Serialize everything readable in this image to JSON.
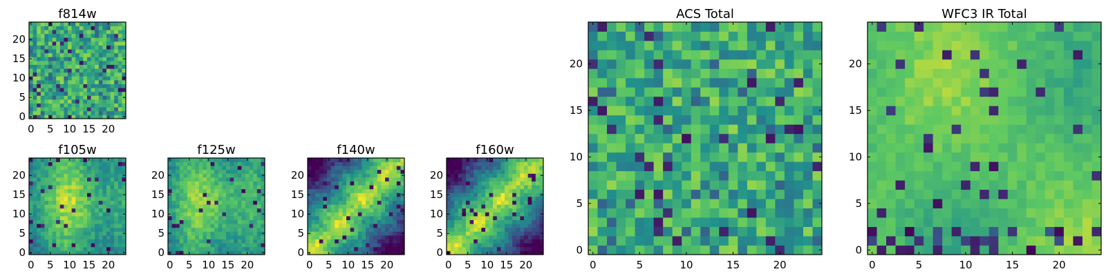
{
  "chart_data": [
    {
      "id": "f814w",
      "type": "heatmap",
      "title": "f814w",
      "texture": "noise",
      "seed": 814,
      "xlim": [
        0,
        24
      ],
      "ylim": [
        0,
        24
      ],
      "xticks": [
        0,
        5,
        10,
        15,
        20
      ],
      "yticks": [
        0,
        5,
        10,
        15,
        20
      ]
    },
    {
      "id": "f105w",
      "type": "heatmap",
      "title": "f105w",
      "texture": "blob",
      "seed": 105,
      "xlim": [
        0,
        24
      ],
      "ylim": [
        0,
        24
      ],
      "xticks": [
        0,
        5,
        10,
        15,
        20
      ],
      "yticks": [
        0,
        5,
        10,
        15,
        20
      ]
    },
    {
      "id": "f125w",
      "type": "heatmap",
      "title": "f125w",
      "texture": "blob",
      "seed": 125,
      "xlim": [
        0,
        24
      ],
      "ylim": [
        0,
        24
      ],
      "xticks": [
        0,
        5,
        10,
        15,
        20
      ],
      "yticks": [
        0,
        5,
        10,
        15,
        20
      ]
    },
    {
      "id": "f140w",
      "type": "heatmap",
      "title": "f140w",
      "texture": "diagonal",
      "seed": 140,
      "xlim": [
        0,
        24
      ],
      "ylim": [
        0,
        24
      ],
      "xticks": [
        0,
        5,
        10,
        15,
        20
      ],
      "yticks": [
        0,
        5,
        10,
        15,
        20
      ]
    },
    {
      "id": "f160w",
      "type": "heatmap",
      "title": "f160w",
      "texture": "diagonal",
      "seed": 160,
      "xlim": [
        0,
        24
      ],
      "ylim": [
        0,
        24
      ],
      "xticks": [
        0,
        5,
        10,
        15,
        20
      ],
      "yticks": [
        0,
        5,
        10,
        15,
        20
      ]
    },
    {
      "id": "acs_total",
      "type": "heatmap",
      "title": "ACS Total",
      "texture": "noise",
      "seed": 7,
      "xlim": [
        0,
        24
      ],
      "ylim": [
        0,
        24
      ],
      "xticks": [
        0,
        5,
        10,
        15,
        20
      ],
      "yticks": [
        0,
        5,
        10,
        15,
        20
      ]
    },
    {
      "id": "wfc3_ir_total",
      "type": "heatmap",
      "title": "WFC3 IR Total",
      "texture": "smooth",
      "seed": 3,
      "xlim": [
        0,
        24
      ],
      "ylim": [
        0,
        24
      ],
      "xticks": [
        0,
        5,
        10,
        15,
        20
      ],
      "yticks": [
        0,
        5,
        10,
        15,
        20
      ]
    }
  ],
  "colormap": "viridis",
  "colormap_stops": [
    "#440154",
    "#3b528b",
    "#21918c",
    "#5ec962",
    "#fde725"
  ]
}
